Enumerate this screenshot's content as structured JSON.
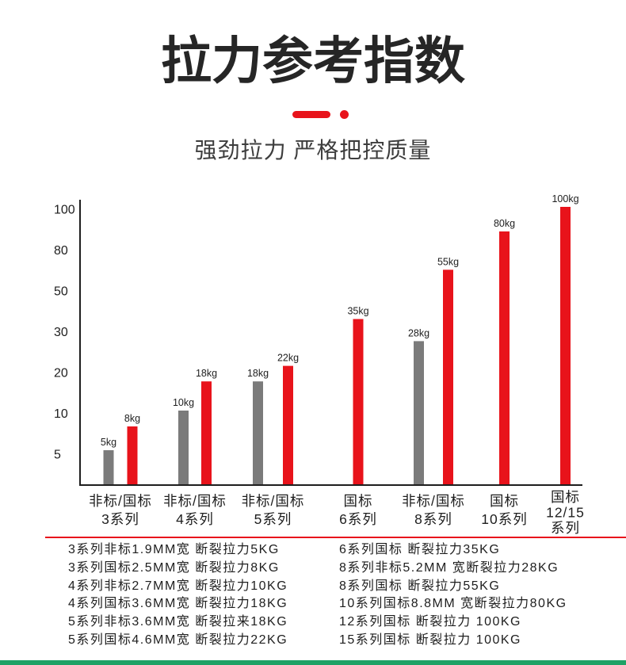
{
  "title": "拉力参考指数",
  "subtitle": "强劲拉力 严格把控质量",
  "colors": {
    "accent": "#e8131b",
    "grey_bar": "#7b7b7b",
    "footer_strip": "#1ea266"
  },
  "chart_data": {
    "type": "bar",
    "yticks": [
      5,
      10,
      20,
      30,
      50,
      80,
      100
    ],
    "ylim": [
      0,
      100
    ],
    "grid": false,
    "value_unit": "kg",
    "categories": [
      [
        "非标/国标",
        "3系列"
      ],
      [
        "非标/国标",
        "4系列"
      ],
      [
        "非标/国标",
        "5系列"
      ],
      [
        "国标",
        "6系列"
      ],
      [
        "非标/国标",
        "8系列"
      ],
      [
        "国标",
        "10系列"
      ],
      [
        "国标",
        "12/15",
        "系列"
      ]
    ],
    "series": [
      {
        "color": "#7b7b7b",
        "values": [
          5,
          10,
          18,
          null,
          28,
          null,
          null
        ]
      },
      {
        "color": "#e8131b",
        "values": [
          8,
          18,
          22,
          35,
          55,
          80,
          100
        ]
      }
    ]
  },
  "specs": {
    "left": [
      "3系列非标1.9MM宽 断裂拉力5KG",
      "3系列国标2.5MM宽 断裂拉力8KG",
      "4系列非标2.7MM宽 断裂拉力10KG",
      "4系列国标3.6MM宽 断裂拉力18KG",
      "5系列非标3.6MM宽 断裂拉来18KG",
      "5系列国标4.6MM宽 断裂拉力22KG"
    ],
    "right": [
      "6系列国标 断裂拉力35KG",
      "8系列非标5.2MM 宽断裂拉力28KG",
      "8系列国标 断裂拉力55KG",
      "10系列国标8.8MM 宽断裂拉力80KG",
      "12系列国标 断裂拉力 100KG",
      "15系列国标 断裂拉力 100KG"
    ]
  }
}
